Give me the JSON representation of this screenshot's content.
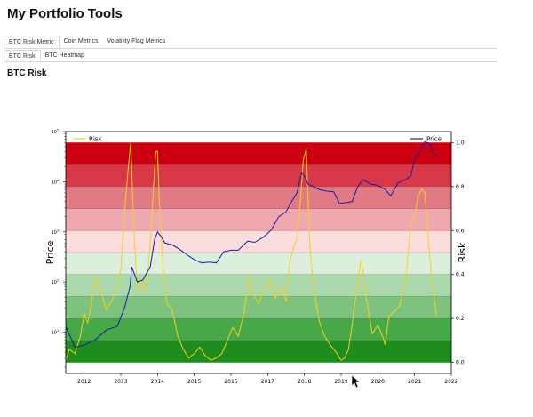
{
  "app": {
    "title": "My Portfolio Tools"
  },
  "main_tabs": [
    {
      "label": "BTC Risk Metric",
      "active": true
    },
    {
      "label": "Coin Metrics",
      "active": false
    },
    {
      "label": "Volatility Flag Metrics",
      "active": false
    }
  ],
  "sub_tabs": [
    {
      "label": "BTC Risk",
      "active": true
    },
    {
      "label": "BTC Heatmap",
      "active": false
    }
  ],
  "section": {
    "title": "BTC Risk"
  },
  "chart_data": {
    "type": "line",
    "title": "",
    "xlabel": "",
    "ylabel": "Price",
    "y2label": "Risk",
    "legend": [
      {
        "name": "Risk",
        "color": "#f2d21b",
        "placement": "top-left"
      },
      {
        "name": "Price",
        "color": "#1a1aa6",
        "placement": "top-right"
      }
    ],
    "x_ticks": [
      "2012",
      "2013",
      "2014",
      "2015",
      "2016",
      "2017",
      "2018",
      "2019",
      "2020",
      "2021",
      "2022"
    ],
    "xlim": [
      2011.5,
      2022.0
    ],
    "y_scale": "log",
    "ylim": [
      1.5,
      100000
    ],
    "y_ticks": [
      {
        "base": "10",
        "exp": "1",
        "value": 10
      },
      {
        "base": "10",
        "exp": "2",
        "value": 100
      },
      {
        "base": "10",
        "exp": "3",
        "value": 1000
      },
      {
        "base": "10",
        "exp": "4",
        "value": 10000
      },
      {
        "base": "10",
        "exp": "5",
        "value": 100000
      }
    ],
    "y2lim": [
      -0.05,
      1.05
    ],
    "y2_ticks": [
      "0.0",
      "0.2",
      "0.4",
      "0.6",
      "0.8",
      "1.0"
    ],
    "risk_bands": [
      {
        "from": 0.0,
        "to": 0.1,
        "color": "#1e8c1e"
      },
      {
        "from": 0.1,
        "to": 0.2,
        "color": "#47a847"
      },
      {
        "from": 0.2,
        "to": 0.3,
        "color": "#7dc27d"
      },
      {
        "from": 0.3,
        "to": 0.4,
        "color": "#acd9ac"
      },
      {
        "from": 0.4,
        "to": 0.5,
        "color": "#dcefdc"
      },
      {
        "from": 0.5,
        "to": 0.6,
        "color": "#fadcdc"
      },
      {
        "from": 0.6,
        "to": 0.7,
        "color": "#eea8ae"
      },
      {
        "from": 0.7,
        "to": 0.8,
        "color": "#e07a84"
      },
      {
        "from": 0.8,
        "to": 0.9,
        "color": "#d83848"
      },
      {
        "from": 0.9,
        "to": 1.0,
        "color": "#cc0010"
      }
    ],
    "series": [
      {
        "name": "Risk",
        "x": [
          2011.5,
          2011.6,
          2011.75,
          2011.9,
          2012.0,
          2012.1,
          2012.2,
          2012.3,
          2012.45,
          2012.6,
          2012.75,
          2012.9,
          2013.0,
          2013.1,
          2013.2,
          2013.27,
          2013.35,
          2013.45,
          2013.55,
          2013.65,
          2013.75,
          2013.85,
          2013.95,
          2014.0,
          2014.05,
          2014.15,
          2014.25,
          2014.4,
          2014.55,
          2014.7,
          2014.85,
          2015.0,
          2015.15,
          2015.3,
          2015.45,
          2015.6,
          2015.75,
          2015.9,
          2016.05,
          2016.2,
          2016.35,
          2016.5,
          2016.6,
          2016.75,
          2016.9,
          2017.05,
          2017.2,
          2017.35,
          2017.5,
          2017.6,
          2017.7,
          2017.8,
          2017.9,
          2017.97,
          2018.05,
          2018.15,
          2018.25,
          2018.4,
          2018.55,
          2018.7,
          2018.85,
          2019.0,
          2019.1,
          2019.2,
          2019.3,
          2019.45,
          2019.55,
          2019.7,
          2019.85,
          2020.0,
          2020.15,
          2020.2,
          2020.3,
          2020.45,
          2020.6,
          2020.75,
          2020.9,
          2021.0,
          2021.1,
          2021.2,
          2021.28,
          2021.4,
          2021.5,
          2021.6
        ],
        "values": [
          0.01,
          0.06,
          0.04,
          0.12,
          0.22,
          0.18,
          0.26,
          0.39,
          0.33,
          0.24,
          0.28,
          0.34,
          0.42,
          0.68,
          0.88,
          1.0,
          0.62,
          0.33,
          0.38,
          0.32,
          0.43,
          0.68,
          0.96,
          0.96,
          0.73,
          0.43,
          0.27,
          0.24,
          0.12,
          0.06,
          0.02,
          0.04,
          0.07,
          0.03,
          0.01,
          0.02,
          0.04,
          0.1,
          0.16,
          0.12,
          0.22,
          0.39,
          0.31,
          0.27,
          0.33,
          0.38,
          0.29,
          0.34,
          0.28,
          0.45,
          0.52,
          0.57,
          0.75,
          0.92,
          0.97,
          0.52,
          0.34,
          0.19,
          0.12,
          0.08,
          0.05,
          0.01,
          0.02,
          0.06,
          0.17,
          0.37,
          0.47,
          0.28,
          0.13,
          0.17,
          0.11,
          0.08,
          0.21,
          0.23,
          0.26,
          0.36,
          0.63,
          0.66,
          0.76,
          0.79,
          0.77,
          0.51,
          0.33,
          0.21
        ]
      },
      {
        "name": "Price",
        "x": [
          2011.5,
          2011.75,
          2012.0,
          2012.3,
          2012.6,
          2012.9,
          2013.1,
          2013.25,
          2013.3,
          2013.45,
          2013.6,
          2013.8,
          2013.92,
          2014.0,
          2014.1,
          2014.2,
          2014.4,
          2014.6,
          2014.8,
          2015.0,
          2015.2,
          2015.4,
          2015.6,
          2015.8,
          2016.0,
          2016.2,
          2016.45,
          2016.65,
          2016.9,
          2017.1,
          2017.3,
          2017.5,
          2017.65,
          2017.8,
          2017.92,
          2018.0,
          2018.1,
          2018.25,
          2018.4,
          2018.6,
          2018.8,
          2018.95,
          2019.1,
          2019.3,
          2019.45,
          2019.6,
          2019.8,
          2020.0,
          2020.2,
          2020.35,
          2020.55,
          2020.75,
          2020.9,
          2021.0,
          2021.15,
          2021.28,
          2021.4,
          2021.5,
          2021.6
        ],
        "values": [
          13,
          5,
          5.5,
          7,
          11,
          13,
          30,
          80,
          200,
          100,
          110,
          200,
          700,
          1000,
          800,
          600,
          550,
          450,
          350,
          280,
          240,
          250,
          240,
          400,
          430,
          430,
          650,
          620,
          800,
          1100,
          2000,
          2500,
          4000,
          6000,
          15000,
          13000,
          9000,
          8000,
          7000,
          6500,
          6300,
          3700,
          3800,
          4000,
          8000,
          11000,
          9000,
          8500,
          7000,
          5200,
          9500,
          11000,
          13000,
          29000,
          40000,
          63000,
          58000,
          38000,
          33000
        ]
      }
    ]
  }
}
